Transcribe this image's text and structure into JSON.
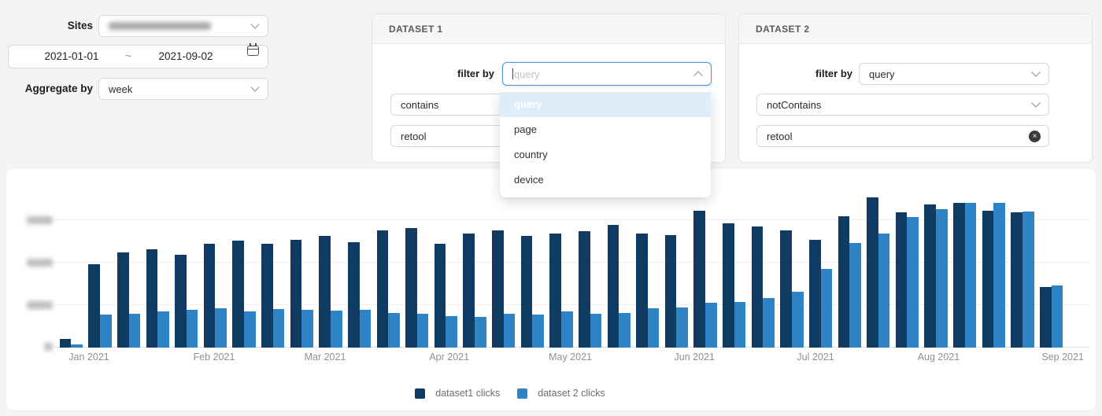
{
  "controls": {
    "sites_label": "Sites",
    "sites_value_redacted": true,
    "date_start": "2021-01-01",
    "date_separator": "~",
    "date_end": "2021-09-02",
    "aggregate_label": "Aggregate by",
    "aggregate_value": "week"
  },
  "ds1": {
    "title": "DATASET 1",
    "filter_by_label": "filter by",
    "filter_placeholder": "query",
    "operator_value": "contains",
    "query_value": "retool",
    "dropdown": {
      "options": [
        "query",
        "page",
        "country",
        "device"
      ],
      "selected": "query"
    }
  },
  "ds2": {
    "title": "DATASET 2",
    "filter_by_label": "filter by",
    "filter_value": "query",
    "operator_value": "notContains",
    "query_value": "retool"
  },
  "chart_data": {
    "type": "bar",
    "title": "",
    "x_unit": "week",
    "num_weeks": 35,
    "date_range": [
      "2021-01-01",
      "2021-09-02"
    ],
    "x_ticks": [
      {
        "label": "Jan 2021",
        "f": 0.032
      },
      {
        "label": "Feb 2021",
        "f": 0.156
      },
      {
        "label": "Mar 2021",
        "f": 0.266
      },
      {
        "label": "Apr 2021",
        "f": 0.389
      },
      {
        "label": "May 2021",
        "f": 0.509
      },
      {
        "label": "Jun 2021",
        "f": 0.632
      },
      {
        "label": "Jul 2021",
        "f": 0.752
      },
      {
        "label": "Aug 2021",
        "f": 0.874
      },
      {
        "label": "Sep 2021",
        "f": 0.997
      }
    ],
    "y_axis": {
      "ylim": [
        0,
        7500
      ],
      "gridline_values_estimated": [
        2000,
        4000,
        6000
      ],
      "tick_labels_redacted": true,
      "values_estimated": true
    },
    "legend_position": "bottom",
    "series": [
      {
        "name": "dataset1 clicks",
        "color": "#103b63",
        "values": [
          400,
          3950,
          4475,
          4625,
          4400,
          4900,
          5050,
          4900,
          5100,
          5275,
          4975,
          5550,
          5650,
          4900,
          5400,
          5550,
          5275,
          5375,
          5500,
          5800,
          5375,
          5300,
          6450,
          5850,
          5725,
          5550,
          5100,
          6200,
          7100,
          6400,
          6750,
          6850,
          6475,
          6375,
          2850
        ]
      },
      {
        "name": "dataset 2 clicks",
        "color": "#2e82c6",
        "values": [
          150,
          1550,
          1600,
          1725,
          1800,
          1850,
          1700,
          1825,
          1800,
          1750,
          1775,
          1625,
          1600,
          1475,
          1450,
          1600,
          1550,
          1700,
          1600,
          1650,
          1850,
          1900,
          2100,
          2150,
          2350,
          2625,
          3725,
          4950,
          5400,
          6175,
          6550,
          6850,
          6825,
          6425,
          2950
        ]
      }
    ]
  }
}
